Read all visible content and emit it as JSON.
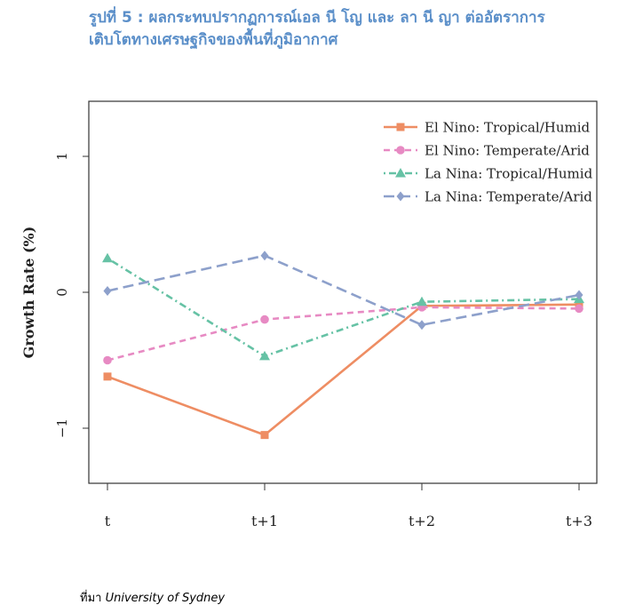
{
  "figure": {
    "title_line1": "รูปที่ 5 : ผลกระทบปรากฏการณ์เอล นี โญ และ ลา นี ญา ต่ออัตราการ",
    "title_line2": "เติบโตทางเศรษฐกิจของพื้นที่ภูมิอากาศ",
    "source_prefix": "ที่มา",
    "source_text": "University of Sydney"
  },
  "chart_data": {
    "type": "line",
    "title": "",
    "xlabel": "",
    "ylabel": "Growth Rate (%)",
    "categories": [
      "t",
      "t+1",
      "t+2",
      "t+3"
    ],
    "yticks": [
      -1,
      0,
      1
    ],
    "ylim": [
      -1.4,
      1.4
    ],
    "grid": false,
    "legend_position": "top-right",
    "series": [
      {
        "name": "El Nino: Tropical/Humid",
        "values": [
          -0.62,
          -1.05,
          -0.1,
          -0.09
        ],
        "color": "#ee8d63",
        "dash": "solid",
        "marker": "square"
      },
      {
        "name": "El Nino: Temperate/Arid",
        "values": [
          -0.5,
          -0.2,
          -0.11,
          -0.12
        ],
        "color": "#e78ac3",
        "dash": "dashed",
        "marker": "circle"
      },
      {
        "name": "La Nina: Tropical/Humid",
        "values": [
          0.25,
          -0.47,
          -0.07,
          -0.05
        ],
        "color": "#66c2a5",
        "dash": "dotdash",
        "marker": "triangle"
      },
      {
        "name": "La Nina: Temperate/Arid",
        "values": [
          0.01,
          0.27,
          -0.24,
          -0.02
        ],
        "color": "#8da0cb",
        "dash": "longdash",
        "marker": "diamond"
      }
    ]
  }
}
